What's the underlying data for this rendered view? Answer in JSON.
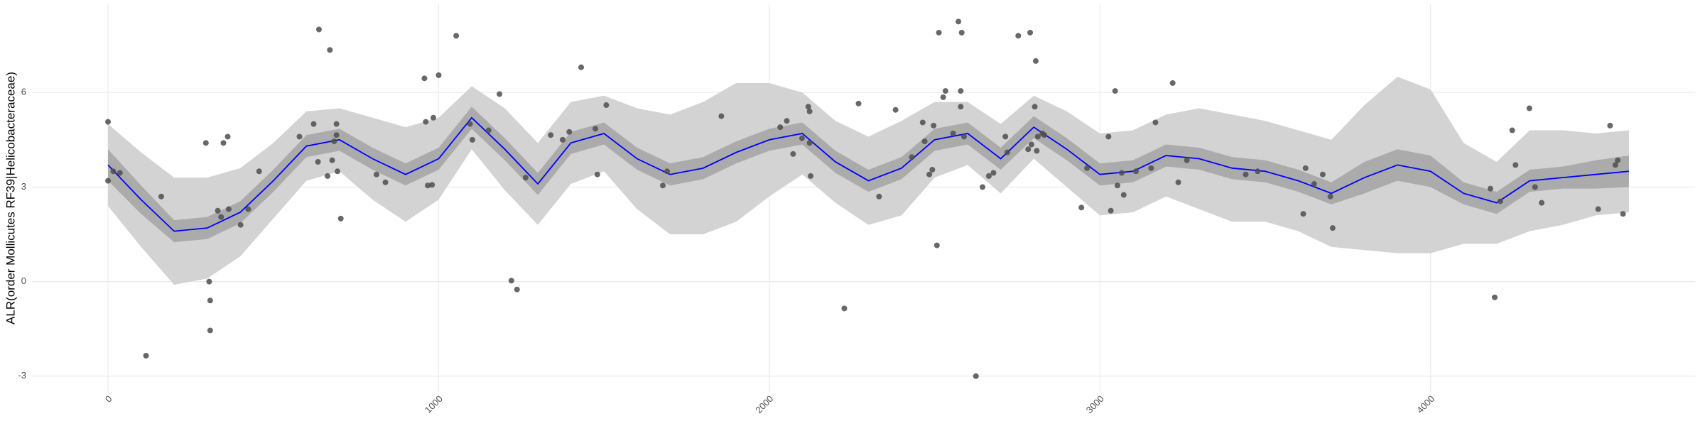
{
  "chart_data": {
    "type": "scatter",
    "y_label": "ALR(order Mollicutes RF39|Helicobacteraceae)",
    "x": [
      0,
      0,
      16,
      36,
      115,
      161,
      296,
      306,
      309,
      309,
      332,
      342,
      349,
      362,
      365,
      401,
      424,
      457,
      579,
      622,
      638,
      635,
      664,
      671,
      678,
      684,
      691,
      691,
      694,
      704,
      812,
      839,
      957,
      961,
      967,
      980,
      984,
      1000,
      1053,
      1095,
      1102,
      1151,
      1184,
      1220,
      1237,
      1263,
      1339,
      1375,
      1395,
      1431,
      1474,
      1480,
      1507,
      1678,
      1691,
      1855,
      2033,
      2053,
      2072,
      2099,
      2118,
      2122,
      2122,
      2125,
      2227,
      2270,
      2332,
      2382,
      2431,
      2464,
      2470,
      2484,
      2493,
      2497,
      2507,
      2513,
      2526,
      2533,
      2556,
      2572,
      2579,
      2579,
      2582,
      2589,
      2625,
      2645,
      2664,
      2678,
      2714,
      2720,
      2753,
      2783,
      2789,
      2793,
      2803,
      2806,
      2809,
      2812,
      2826,
      2832,
      2944,
      2961,
      3026,
      3033,
      3046,
      3053,
      3066,
      3072,
      3109,
      3155,
      3168,
      3220,
      3237,
      3263,
      3441,
      3477,
      3615,
      3622,
      3648,
      3674,
      3697,
      3704,
      4181,
      4194,
      4211,
      4247,
      4257,
      4299,
      4316,
      4336,
      4507,
      4543,
      4559,
      4566,
      4582
    ],
    "values": [
      5.07,
      3.2,
      3.5,
      3.45,
      -2.35,
      2.7,
      4.4,
      0.0,
      -0.6,
      -1.55,
      2.25,
      2.05,
      4.4,
      4.6,
      2.3,
      1.8,
      2.3,
      3.5,
      4.6,
      5.0,
      8.0,
      3.8,
      3.35,
      7.35,
      3.85,
      4.45,
      5.0,
      4.65,
      3.5,
      2.0,
      3.4,
      3.15,
      6.45,
      5.07,
      3.05,
      3.07,
      5.2,
      6.55,
      7.8,
      5.0,
      4.5,
      4.8,
      5.95,
      0.03,
      -0.25,
      3.3,
      4.65,
      4.5,
      4.75,
      6.8,
      4.85,
      3.4,
      5.6,
      3.05,
      3.5,
      5.25,
      4.9,
      5.1,
      4.05,
      4.55,
      5.55,
      5.4,
      4.4,
      3.35,
      -0.85,
      5.65,
      2.7,
      5.45,
      3.95,
      5.05,
      4.45,
      3.4,
      3.55,
      4.95,
      1.15,
      7.9,
      5.85,
      6.05,
      4.7,
      8.25,
      6.05,
      5.55,
      7.9,
      4.6,
      -3.0,
      3.0,
      3.35,
      3.45,
      4.6,
      4.1,
      7.8,
      4.2,
      7.9,
      4.35,
      5.55,
      7.0,
      4.15,
      4.6,
      4.7,
      4.65,
      2.35,
      3.6,
      4.6,
      2.25,
      6.05,
      3.05,
      3.45,
      2.75,
      3.5,
      3.6,
      5.05,
      6.3,
      3.15,
      3.85,
      3.4,
      3.5,
      2.15,
      3.6,
      3.1,
      3.4,
      2.7,
      1.7,
      2.95,
      -0.5,
      2.55,
      4.8,
      3.7,
      5.5,
      3.0,
      2.5,
      2.3,
      4.95,
      3.7,
      3.85,
      2.15
    ],
    "point_color": "#4d4d4d",
    "smooth": {
      "x": [
        0,
        100,
        200,
        300,
        400,
        500,
        600,
        700,
        800,
        900,
        1000,
        1100,
        1200,
        1300,
        1400,
        1500,
        1600,
        1700,
        1800,
        1900,
        2000,
        2100,
        2200,
        2300,
        2400,
        2500,
        2600,
        2700,
        2800,
        2900,
        3000,
        3100,
        3200,
        3300,
        3400,
        3500,
        3600,
        3700,
        3800,
        3900,
        4000,
        4100,
        4200,
        4300,
        4400,
        4500,
        4600
      ],
      "values": [
        3.7,
        2.6,
        1.6,
        1.7,
        2.2,
        3.2,
        4.3,
        4.5,
        3.9,
        3.4,
        3.9,
        5.2,
        4.2,
        3.1,
        4.4,
        4.7,
        3.9,
        3.4,
        3.6,
        4.1,
        4.5,
        4.7,
        3.8,
        3.2,
        3.6,
        4.5,
        4.7,
        3.9,
        4.9,
        4.2,
        3.4,
        3.5,
        4.0,
        3.9,
        3.6,
        3.5,
        3.2,
        2.8,
        3.3,
        3.7,
        3.5,
        2.8,
        2.5,
        3.2,
        3.3,
        3.4,
        3.5
      ],
      "color": "#0000ff"
    },
    "bands": [
      {
        "color": "#d3d3d3",
        "lower": [
          2.4,
          1.1,
          -0.1,
          0.1,
          0.8,
          2.0,
          3.2,
          3.5,
          2.6,
          1.9,
          2.6,
          4.2,
          2.9,
          1.8,
          3.1,
          3.5,
          2.3,
          1.5,
          1.5,
          1.9,
          2.7,
          3.4,
          2.5,
          1.8,
          2.1,
          3.3,
          3.7,
          2.8,
          3.9,
          3.0,
          2.1,
          2.2,
          2.7,
          2.3,
          1.9,
          1.9,
          1.6,
          1.1,
          1.0,
          0.9,
          0.9,
          1.2,
          1.2,
          1.6,
          1.8,
          2.1,
          2.2
        ],
        "upper": [
          5.0,
          4.1,
          3.3,
          3.3,
          3.6,
          4.4,
          5.4,
          5.5,
          5.2,
          4.9,
          5.2,
          6.2,
          5.5,
          4.4,
          5.7,
          5.9,
          5.5,
          5.3,
          5.7,
          6.3,
          6.3,
          6.0,
          5.1,
          4.6,
          5.1,
          5.7,
          5.7,
          5.0,
          5.9,
          5.4,
          4.7,
          4.8,
          5.3,
          5.5,
          5.3,
          5.1,
          4.8,
          4.5,
          5.6,
          6.5,
          6.1,
          4.4,
          3.8,
          4.8,
          4.8,
          4.7,
          4.8
        ]
      },
      {
        "color": "#ababab",
        "lower": [
          3.2,
          2.15,
          1.25,
          1.35,
          1.85,
          2.85,
          3.95,
          4.15,
          3.55,
          3.05,
          3.55,
          4.85,
          3.85,
          2.75,
          4.05,
          4.35,
          3.55,
          3.05,
          3.25,
          3.75,
          4.15,
          4.35,
          3.45,
          2.85,
          3.25,
          4.15,
          4.35,
          3.55,
          4.55,
          3.85,
          3.05,
          3.15,
          3.65,
          3.55,
          3.25,
          3.15,
          2.85,
          2.45,
          2.8,
          3.2,
          3.0,
          2.45,
          2.15,
          2.85,
          2.95,
          2.95,
          3.0
        ],
        "upper": [
          4.2,
          3.05,
          1.95,
          2.05,
          2.55,
          3.55,
          4.65,
          4.85,
          4.25,
          3.75,
          4.25,
          5.55,
          4.55,
          3.45,
          4.75,
          5.05,
          4.25,
          3.75,
          3.95,
          4.45,
          4.85,
          5.05,
          4.15,
          3.55,
          3.95,
          4.85,
          5.05,
          4.25,
          5.25,
          4.55,
          3.75,
          3.85,
          4.35,
          4.25,
          3.95,
          3.85,
          3.55,
          3.15,
          3.8,
          4.2,
          4.0,
          3.15,
          2.85,
          3.55,
          3.65,
          3.85,
          4.0
        ]
      }
    ],
    "xlim": [
      -230,
      4800
    ],
    "ylim": [
      -3.5,
      8.8
    ],
    "xticks": [
      0,
      1000,
      2000,
      3000,
      4000
    ],
    "yticks": [
      -3,
      0,
      3,
      6
    ],
    "grid": true
  }
}
